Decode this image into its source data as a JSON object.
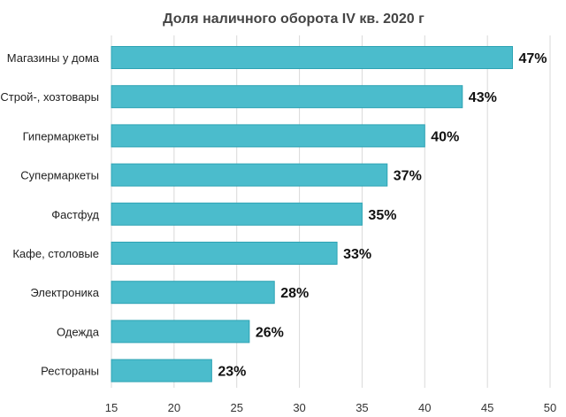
{
  "chart_data": {
    "type": "bar",
    "orientation": "horizontal",
    "title": "Доля наличного оборота IV кв. 2020 г",
    "categories": [
      "Магазины у дома",
      "Строй-, хозтовары",
      "Гипермаркеты",
      "Супермаркеты",
      "Фастфуд",
      "Кафе, столовые",
      "Электроника",
      "Одежда",
      "Рестораны"
    ],
    "values": [
      47,
      43,
      40,
      37,
      35,
      33,
      28,
      26,
      23
    ],
    "value_labels": [
      "47%",
      "43%",
      "40%",
      "37%",
      "35%",
      "33%",
      "28%",
      "26%",
      "23%"
    ],
    "xlim": [
      15,
      50
    ],
    "xticks": [
      15,
      20,
      25,
      30,
      35,
      40,
      45,
      50
    ],
    "xlabel": "",
    "ylabel": "",
    "grid": "vertical",
    "legend": "none",
    "bar_color": "#4bbccc",
    "bar_edge_color": "#2ea3b4"
  }
}
